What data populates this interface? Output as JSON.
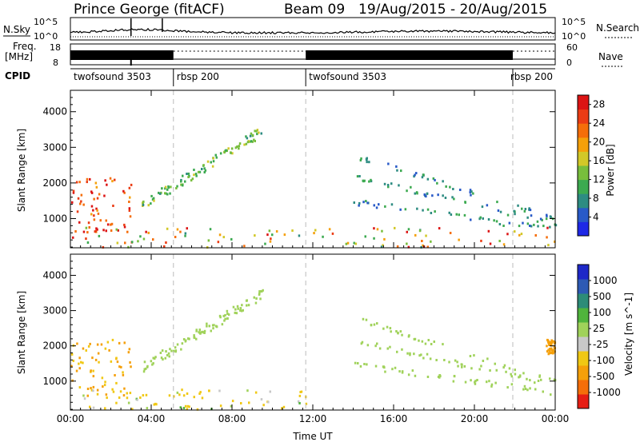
{
  "header": {
    "station": "Prince George (fitACF)",
    "beam": "Beam 09",
    "dates": "19/Aug/2015 - 20/Aug/2015"
  },
  "top_panels": {
    "nsky_label": "N.Sky",
    "nsky_ticks": [
      "10^5",
      "10^0"
    ],
    "nsearch_label": "N.Search",
    "freq_label_1": "Freq.",
    "freq_label_2": "[MHz]",
    "freq_ticks": [
      "18",
      "8"
    ],
    "nave_label": "Nave",
    "nave_ticks": [
      "60",
      "0"
    ],
    "cpid_label": "CPID",
    "cpid_segments": [
      {
        "name": "twofsound 3503",
        "start": 0.0,
        "end": 5.1
      },
      {
        "name": "rbsp 200",
        "start": 5.1,
        "end": 11.65
      },
      {
        "name": "twofsound 3503",
        "start": 11.65,
        "end": 21.9
      },
      {
        "name": "rbsp 200",
        "start": 21.9,
        "end": 24.0
      }
    ]
  },
  "colors": {
    "power_scale": [
      "#1e28e6",
      "#285ac8",
      "#2d8c82",
      "#3caa50",
      "#78be3c",
      "#d2c828",
      "#f5a00a",
      "#f56e0a",
      "#eb3c14",
      "#dc1414"
    ],
    "velocity_scale": [
      "#1e28c8",
      "#2d5ab4",
      "#2d8c78",
      "#50b43c",
      "#a0d25a",
      "#c8c8c8",
      "#f0c814",
      "#f5a00a",
      "#f56e0a",
      "#e61e14"
    ]
  },
  "chart_data": [
    {
      "type": "heatmap",
      "name": "power",
      "ylabel": "Slant Range [km]",
      "x_ticks": [
        "00:00",
        "04:00",
        "08:00",
        "12:00",
        "16:00",
        "20:00",
        "00:00"
      ],
      "x_range_hours": [
        0,
        24
      ],
      "ylim_km": [
        180,
        4600
      ],
      "y_ticks": [
        1000,
        2000,
        3000,
        4000
      ],
      "colorbar_label": "Power [dB]",
      "colorbar_ticks": [
        4,
        8,
        12,
        16,
        20,
        24,
        28
      ],
      "colorbar_range": [
        0,
        30
      ],
      "cpid_change_lines_hours": [
        5.1,
        11.65,
        21.9
      ],
      "features": [
        {
          "region": "near-range band",
          "hours": [
            0,
            24
          ],
          "range_km": [
            200,
            800
          ],
          "power_db": [
            8,
            30
          ]
        },
        {
          "region": "morning echoes",
          "hours": [
            0,
            3
          ],
          "range_km": [
            600,
            2200
          ],
          "power_db": [
            20,
            30
          ]
        },
        {
          "region": "rising arc",
          "hours": [
            3.5,
            9.5
          ],
          "range_km": [
            1400,
            3500
          ],
          "power_db": [
            8,
            16
          ]
        },
        {
          "region": "descending arcs",
          "hours": [
            14,
            24
          ],
          "range_km": [
            700,
            2800
          ],
          "power_db": [
            4,
            12
          ]
        }
      ]
    },
    {
      "type": "heatmap",
      "name": "velocity",
      "xlabel": "Time UT",
      "ylabel": "Slant Range [km]",
      "x_ticks": [
        "00:00",
        "04:00",
        "08:00",
        "12:00",
        "16:00",
        "20:00",
        "00:00"
      ],
      "x_range_hours": [
        0,
        24
      ],
      "ylim_km": [
        180,
        4600
      ],
      "y_ticks": [
        1000,
        2000,
        3000,
        4000
      ],
      "colorbar_label": "Velocity [m s^-1]",
      "colorbar_ticks": [
        "1000",
        "500",
        "100",
        "25",
        "-25",
        "-100",
        "-500",
        "-1000"
      ],
      "cpid_change_lines_hours": [
        5.1,
        11.65,
        21.9
      ],
      "features": [
        {
          "region": "morning echoes",
          "hours": [
            0,
            3
          ],
          "range_km": [
            600,
            2200
          ],
          "velocity_ms": [
            -1000,
            -100
          ]
        },
        {
          "region": "near-range band",
          "hours": [
            0,
            12
          ],
          "range_km": [
            200,
            800
          ],
          "velocity_ms": [
            -500,
            100
          ]
        },
        {
          "region": "rising arc",
          "hours": [
            3.5,
            9.5
          ],
          "range_km": [
            1400,
            3500
          ],
          "velocity_ms": [
            -25,
            25
          ]
        },
        {
          "region": "descending arcs",
          "hours": [
            14,
            24
          ],
          "range_km": [
            700,
            2800
          ],
          "velocity_ms": [
            -25,
            25
          ]
        },
        {
          "region": "late-day patch",
          "hours": [
            23.5,
            24
          ],
          "range_km": [
            1800,
            2200
          ],
          "velocity_ms": [
            -1000,
            -500
          ]
        }
      ]
    }
  ]
}
